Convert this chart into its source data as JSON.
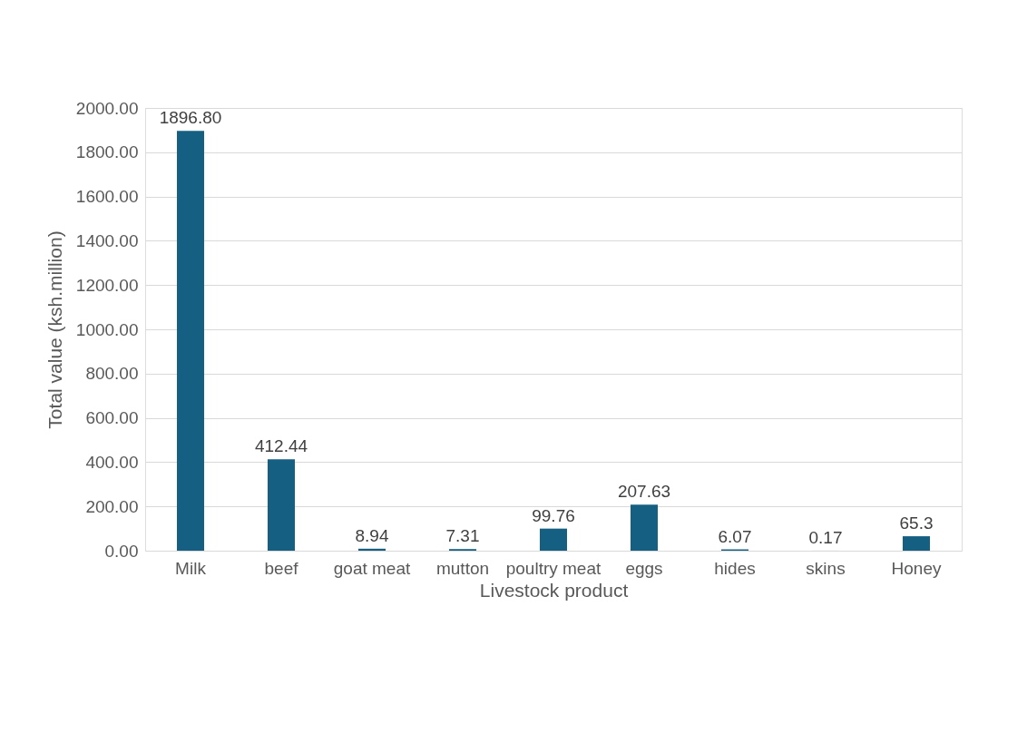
{
  "chart_data": {
    "type": "bar",
    "xlabel": "Livestock product",
    "ylabel": "Total value (ksh.million)",
    "categories": [
      "Milk",
      "beef",
      "goat meat",
      "mutton",
      "poultry meat",
      "eggs",
      "hides",
      "skins",
      "Honey"
    ],
    "values": [
      1896.8,
      412.44,
      8.94,
      7.31,
      99.76,
      207.63,
      6.07,
      0.17,
      65.3
    ],
    "value_labels": [
      "1896.80",
      "412.44",
      "8.94",
      "7.31",
      "99.76",
      "207.63",
      "6.07",
      "0.17",
      "65.3"
    ],
    "color": "#156082",
    "ylim": [
      0,
      2000
    ],
    "yticks": [
      {
        "value": 0,
        "label": "0.00"
      },
      {
        "value": 200,
        "label": "200.00"
      },
      {
        "value": 400,
        "label": "400.00"
      },
      {
        "value": 600,
        "label": "600.00"
      },
      {
        "value": 800,
        "label": "800.00"
      },
      {
        "value": 1000,
        "label": "1000.00"
      },
      {
        "value": 1200,
        "label": "1200.00"
      },
      {
        "value": 1400,
        "label": "1400.00"
      },
      {
        "value": 1600,
        "label": "1600.00"
      },
      {
        "value": 1800,
        "label": "1800.00"
      },
      {
        "value": 2000,
        "label": "2000.00"
      }
    ],
    "grid": true
  }
}
